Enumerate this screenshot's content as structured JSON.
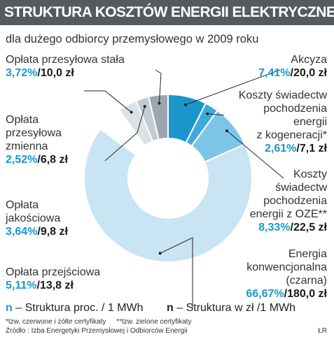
{
  "header": {
    "title": "STRUKTURA KOSZTÓW ENERGII ELEKTRYCZNEJ"
  },
  "subtitle": "dla dużego odbiorcy przemysłowego w 2009 roku",
  "chart_data": {
    "type": "pie",
    "title": "STRUKTURA KOSZTÓW ENERGII ELEKTRYCZNEJ",
    "subtitle": "dla dużego odbiorcy przemysłowego w 2009 roku",
    "slices": [
      {
        "label_lines": [
          "Akcyza"
        ],
        "percent": 7.41,
        "percent_text": "7,41%",
        "value": 20.0,
        "value_text": "20,0 zł",
        "color": "#1a96cd"
      },
      {
        "label_lines": [
          "Koszty świadectw",
          "pochodzenia",
          "energii",
          "z kogeneracji*"
        ],
        "percent": 2.61,
        "percent_text": "2,61%",
        "value": 7.1,
        "value_text": "7,1 zł",
        "color": "#3eaadb"
      },
      {
        "label_lines": [
          "Koszty",
          "świadectw",
          "pochodzenia",
          "energii z OZE**"
        ],
        "percent": 8.33,
        "percent_text": "8,33%",
        "value": 22.5,
        "value_text": "22,5 zł",
        "color": "#7cc5e8"
      },
      {
        "label_lines": [
          "Energia",
          "konwencjonalna",
          "(czarna)"
        ],
        "percent": 66.67,
        "percent_text": "66,67%",
        "value": 180.0,
        "value_text": "180,0 zł",
        "color": "#c9e4f3"
      },
      {
        "label_lines": [
          "Opłata przejściowa"
        ],
        "percent": 5.11,
        "percent_text": "5,11%",
        "value": 13.8,
        "value_text": "13,8 zł",
        "color": "#ffffff"
      },
      {
        "label_lines": [
          "Opłata",
          "jakościowa"
        ],
        "percent": 3.64,
        "percent_text": "3,64%",
        "value": 9.8,
        "value_text": "9,8 zł",
        "color": "#dbe2e7"
      },
      {
        "label_lines": [
          "Opłata",
          "przesyłowa",
          "zmienna"
        ],
        "percent": 2.52,
        "percent_text": "2,52%",
        "value": 6.8,
        "value_text": "6,8 zł",
        "color": "#c3ccd3"
      },
      {
        "label_lines": [
          "Opłata przesyłowa stała"
        ],
        "percent": 3.72,
        "percent_text": "3,72%",
        "value": 10.0,
        "value_text": "10,0 zł",
        "color": "#9ba6af"
      }
    ]
  },
  "legend": {
    "symbol": "n",
    "percent_text": "– Struktura proc. / 1 MWh",
    "value_text": "– Struktura w zł /1 MWh"
  },
  "footnotes": {
    "line1_a": "*tzw. czerwone i żółte certyfikaty",
    "line1_b": "**tzw. zielone certyfikaty",
    "source": "Źródło : Izba Energetyki Przemysłowej i Odbiorców Energii",
    "author": "ŁR"
  }
}
